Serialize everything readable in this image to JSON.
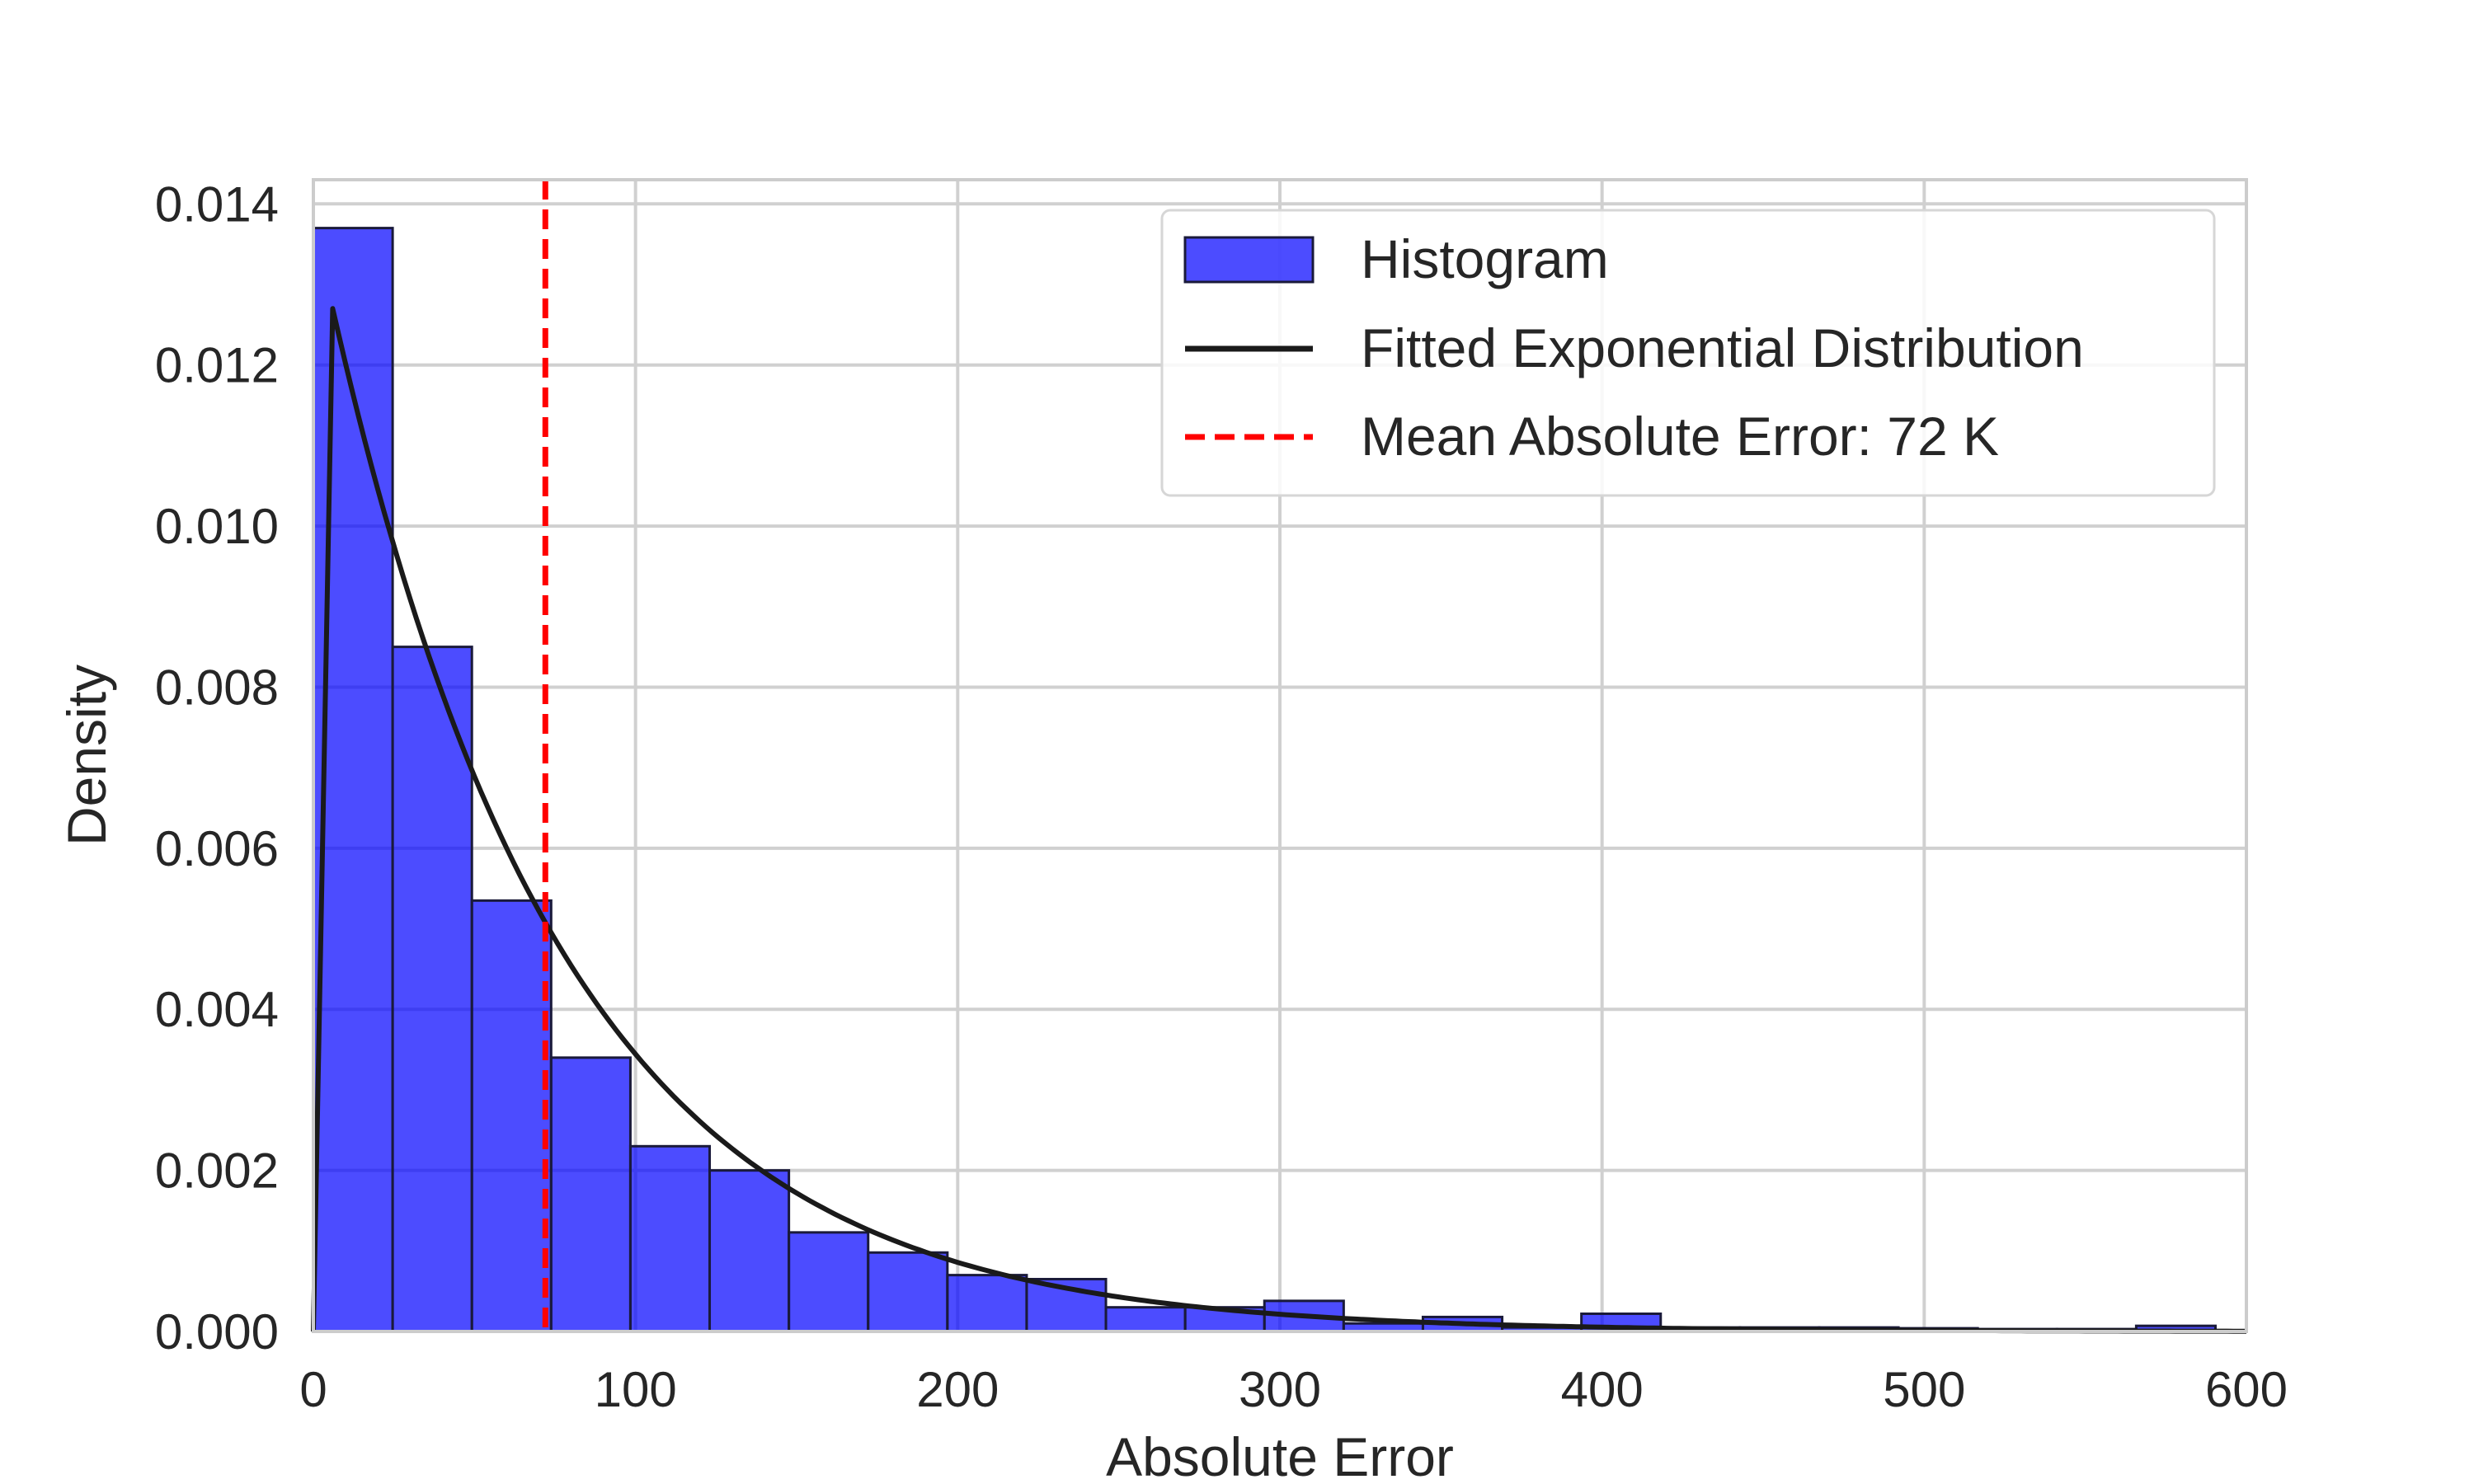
{
  "chart_data": {
    "type": "bar",
    "title": "",
    "xlabel": "Absolute Error",
    "ylabel": "Density",
    "xlim": [
      0,
      600
    ],
    "ylim": [
      0,
      0.0143
    ],
    "xticks": [
      0,
      100,
      200,
      300,
      400,
      500,
      600
    ],
    "yticks": [
      0.0,
      0.002,
      0.004,
      0.006,
      0.008,
      0.01,
      0.012,
      0.014
    ],
    "grid": true,
    "legend_position": "top-right",
    "histogram": {
      "name": "Histogram",
      "color": "#0000ff",
      "bin_width": 24.6,
      "bins_left": [
        0,
        24.6,
        49.2,
        73.8,
        98.4,
        123.0,
        147.6,
        172.2,
        196.8,
        221.4,
        246.0,
        270.6,
        295.2,
        319.8,
        344.4,
        369.0,
        393.6,
        418.2,
        442.8,
        467.4,
        492.0,
        516.6,
        541.2,
        565.8
      ],
      "values": [
        0.0137,
        0.0085,
        0.00535,
        0.0034,
        0.0023,
        0.002,
        0.00123,
        0.00098,
        0.0007,
        0.00065,
        0.0003,
        0.0003,
        0.00038,
        0.0001,
        0.00018,
        5e-05,
        0.00022,
        5e-05,
        5e-05,
        5e-05,
        4e-05,
        3e-05,
        3e-05,
        7e-05
      ]
    },
    "fitted_curve": {
      "name": "Fitted Exponential Distribution",
      "color": "#1a1a1a",
      "peak_x": 6,
      "peak_y": 0.0127,
      "x": [
        0,
        6,
        20,
        40,
        60,
        80,
        100,
        150,
        200,
        250,
        300,
        350,
        400,
        450,
        500,
        550,
        600
      ],
      "y": [
        0.0,
        0.0127,
        0.0104,
        0.0077,
        0.0058,
        0.0044,
        0.0034,
        0.00175,
        0.00088,
        0.00045,
        0.00023,
        0.00012,
        6e-05,
        3e-05,
        1.5e-05,
        8e-06,
        4e-06
      ]
    },
    "mean_line": {
      "name": "Mean Absolute Error: 72 K",
      "value": 72,
      "color": "#ff0000",
      "style": "dashed"
    }
  }
}
